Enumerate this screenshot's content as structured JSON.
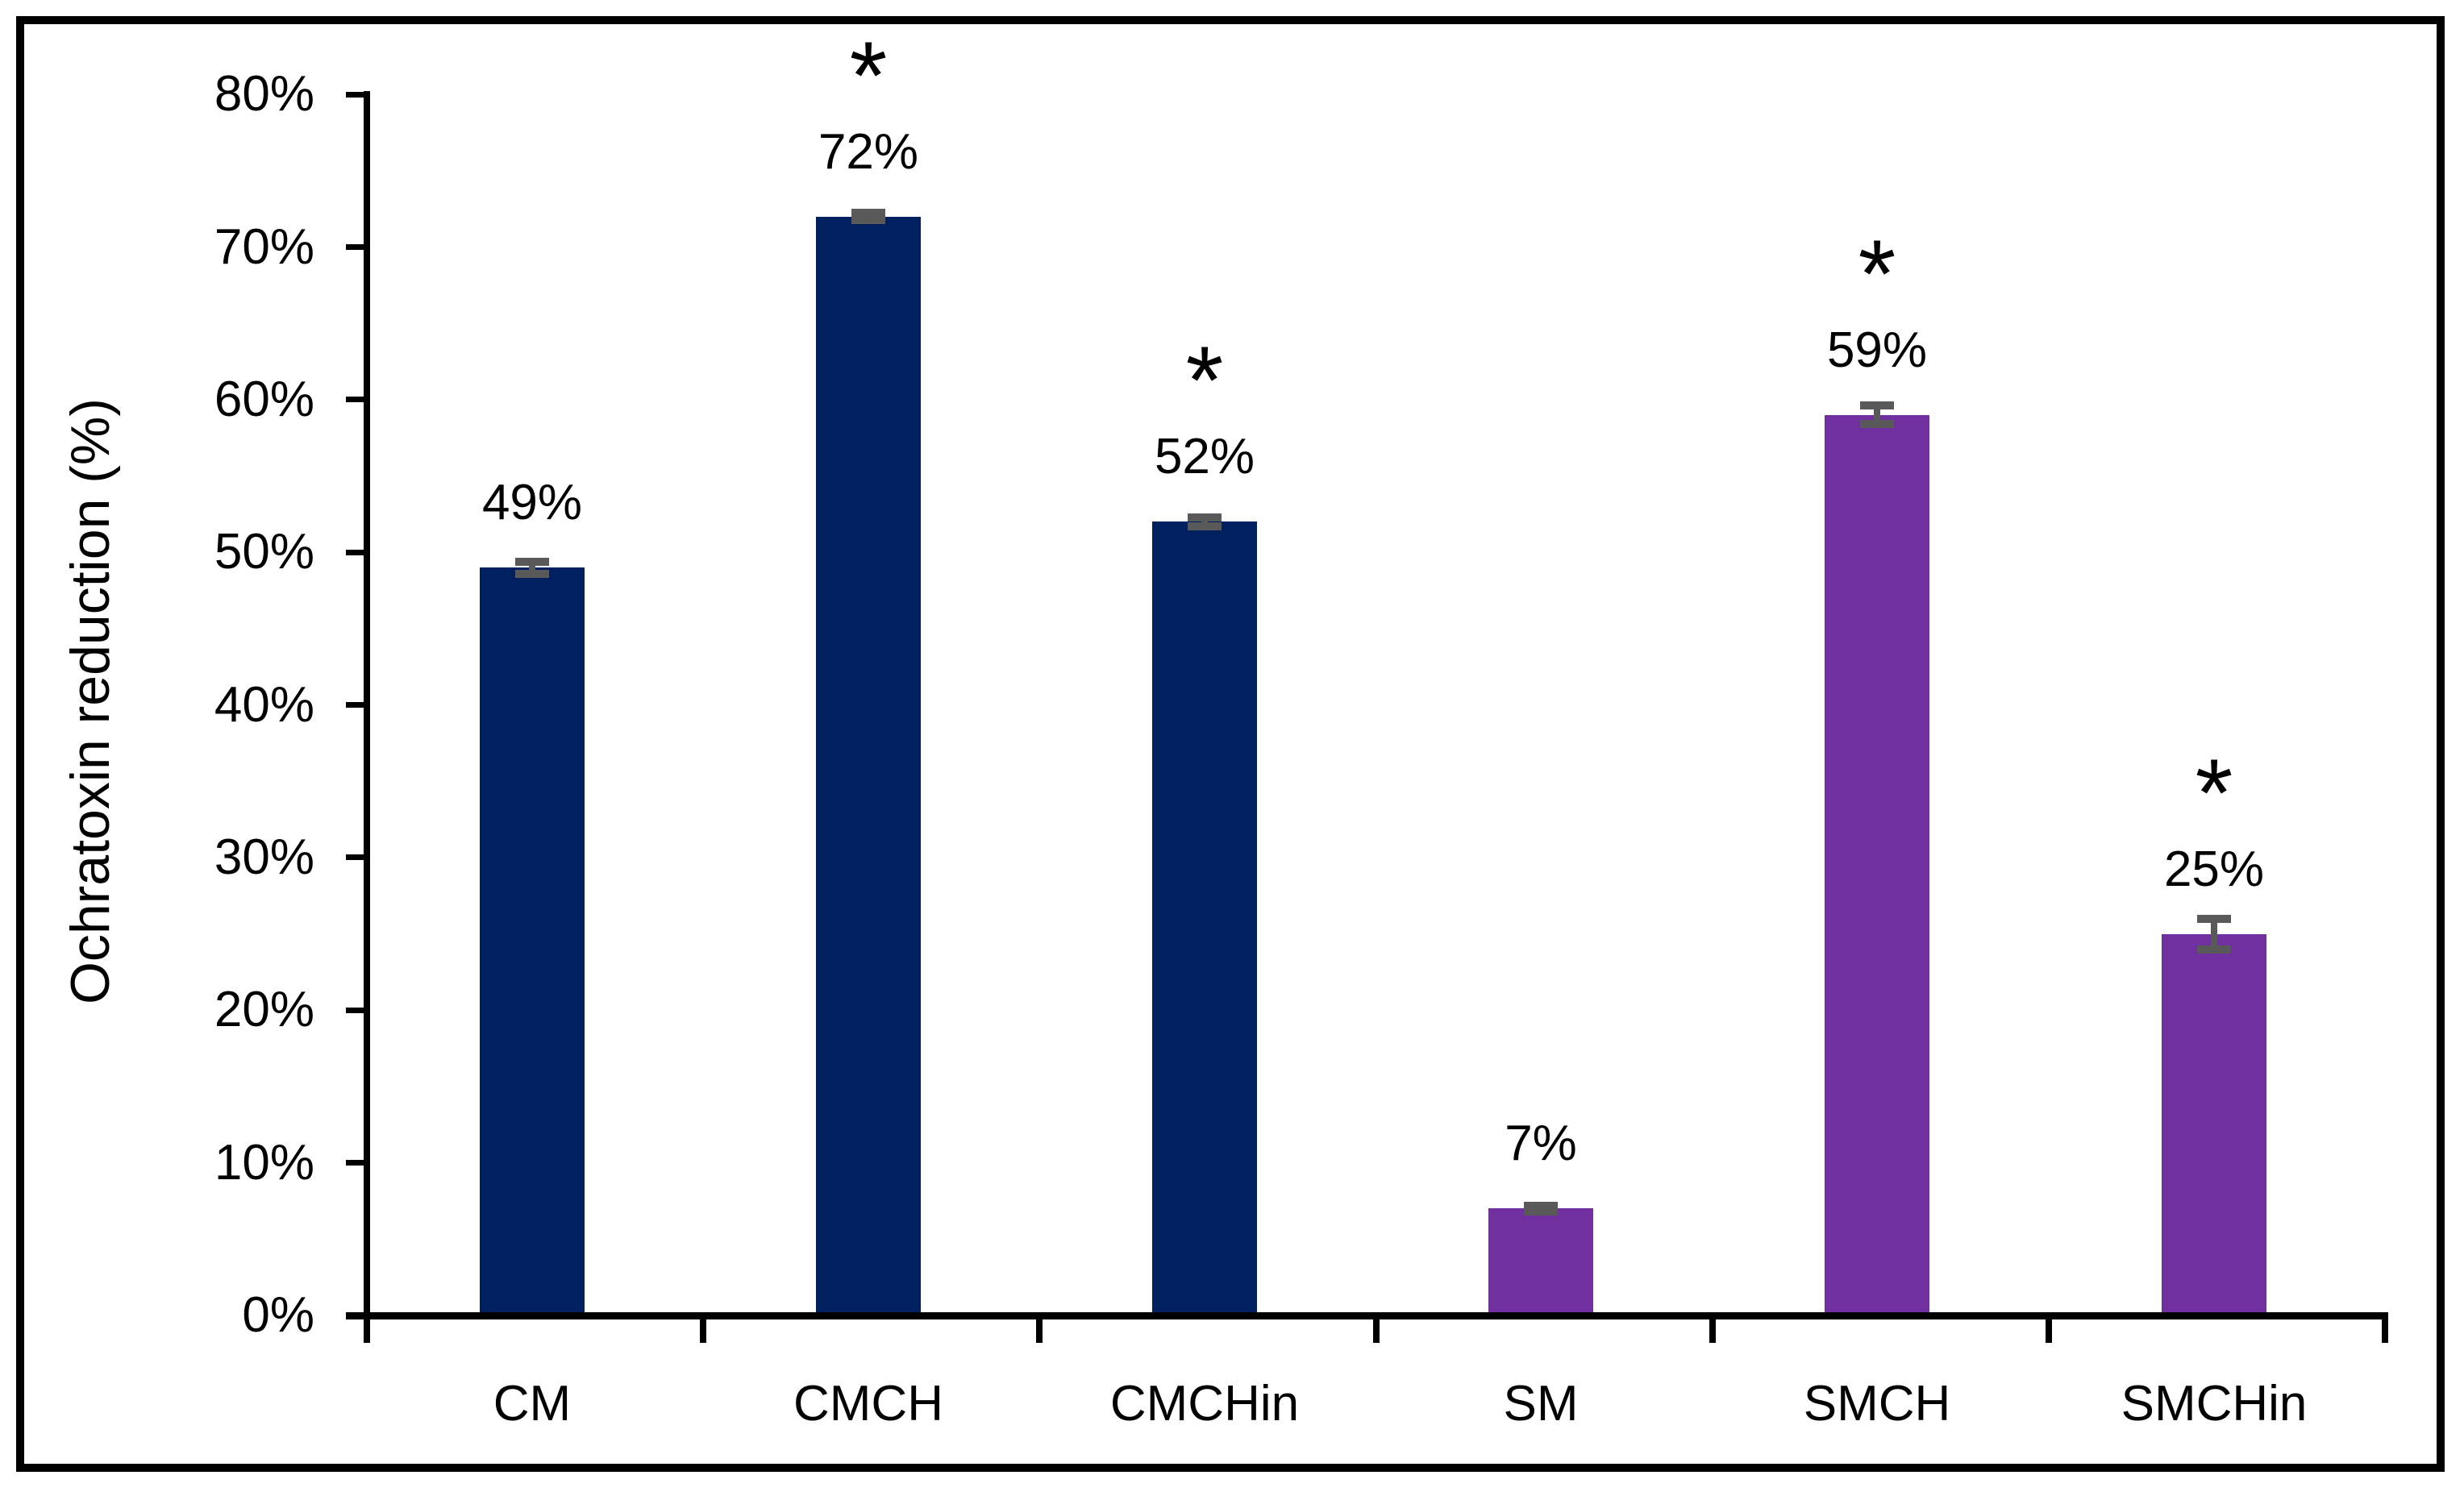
{
  "chart_data": {
    "type": "bar",
    "title": "",
    "xlabel": "",
    "ylabel": "Ochratoxin reduction (%)",
    "categories": [
      "CM",
      "CMCH",
      "CMCHin",
      "SM",
      "SMCH",
      "SMCHin"
    ],
    "values": [
      49,
      72,
      52,
      7,
      59,
      25
    ],
    "value_labels": [
      "49%",
      "72%",
      "52%",
      "7%",
      "59%",
      "25%"
    ],
    "errors_pct": [
      0.4,
      0.25,
      0.3,
      0.2,
      0.6,
      1.0
    ],
    "significant": [
      false,
      true,
      true,
      false,
      true,
      true
    ],
    "significance_marker": "*",
    "bar_colors": [
      "#002060",
      "#002060",
      "#002060",
      "#7030A0",
      "#7030A0",
      "#7030A0"
    ],
    "error_bar_color": "#595959",
    "axis_color": "#000000",
    "frame_color": "#000000",
    "ylim": [
      0,
      80
    ],
    "ytick_step": 10,
    "ytick_labels": [
      "0%",
      "10%",
      "20%",
      "30%",
      "40%",
      "50%",
      "60%",
      "70%",
      "80%"
    ],
    "grid": false,
    "legend": false
  }
}
